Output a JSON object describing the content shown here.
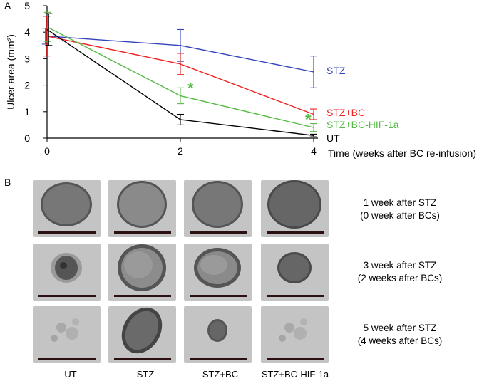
{
  "panels": {
    "a": "A",
    "b": "B"
  },
  "chart_data": {
    "type": "line",
    "ylabel": "Ulcer area (mm²)",
    "xlabel": "Time (weeks after BC re-infusion)",
    "x": [
      0,
      2,
      4
    ],
    "xticks": [
      "0",
      "2",
      "4"
    ],
    "yticks": [
      "0",
      "1",
      "2",
      "3",
      "4",
      "5"
    ],
    "xlim": [
      0,
      4
    ],
    "ylim": [
      0,
      5
    ],
    "grid": false,
    "legend": "right",
    "series": [
      {
        "name": "STZ",
        "color": "#3344bb",
        "values": [
          3.85,
          3.5,
          2.5
        ],
        "errors": [
          0.3,
          0.6,
          0.6
        ]
      },
      {
        "name": "STZ+BC",
        "color": "#ee2222",
        "values": [
          3.85,
          2.8,
          0.9
        ],
        "errors": [
          0.75,
          0.4,
          0.2
        ]
      },
      {
        "name": "STZ+BC-HIF-1a",
        "color": "#55bb44",
        "values": [
          4.2,
          1.6,
          0.4
        ],
        "errors": [
          0.55,
          0.3,
          0.15
        ]
      },
      {
        "name": "UT",
        "color": "#000000",
        "values": [
          4.1,
          0.7,
          0.1
        ],
        "errors": [
          0.6,
          0.2,
          0.05
        ]
      }
    ],
    "annotations": [
      {
        "text": "*",
        "series": "STZ+BC-HIF-1a",
        "x": 2,
        "color": "#55bb44"
      },
      {
        "text": "*",
        "series": "STZ+BC-HIF-1a",
        "x": 4,
        "color": "#55bb44"
      }
    ]
  },
  "panel_b": {
    "columns": [
      "UT",
      "STZ",
      "STZ+BC",
      "STZ+BC-HIF-1a"
    ],
    "rows": [
      {
        "line1": "1 week after STZ",
        "line2": "(0 week after BCs)"
      },
      {
        "line1": "3 week after STZ",
        "line2": "(2 weeks after BCs)"
      },
      {
        "line1": "5 week after STZ",
        "line2": "(4 weeks after BCs)"
      }
    ]
  }
}
